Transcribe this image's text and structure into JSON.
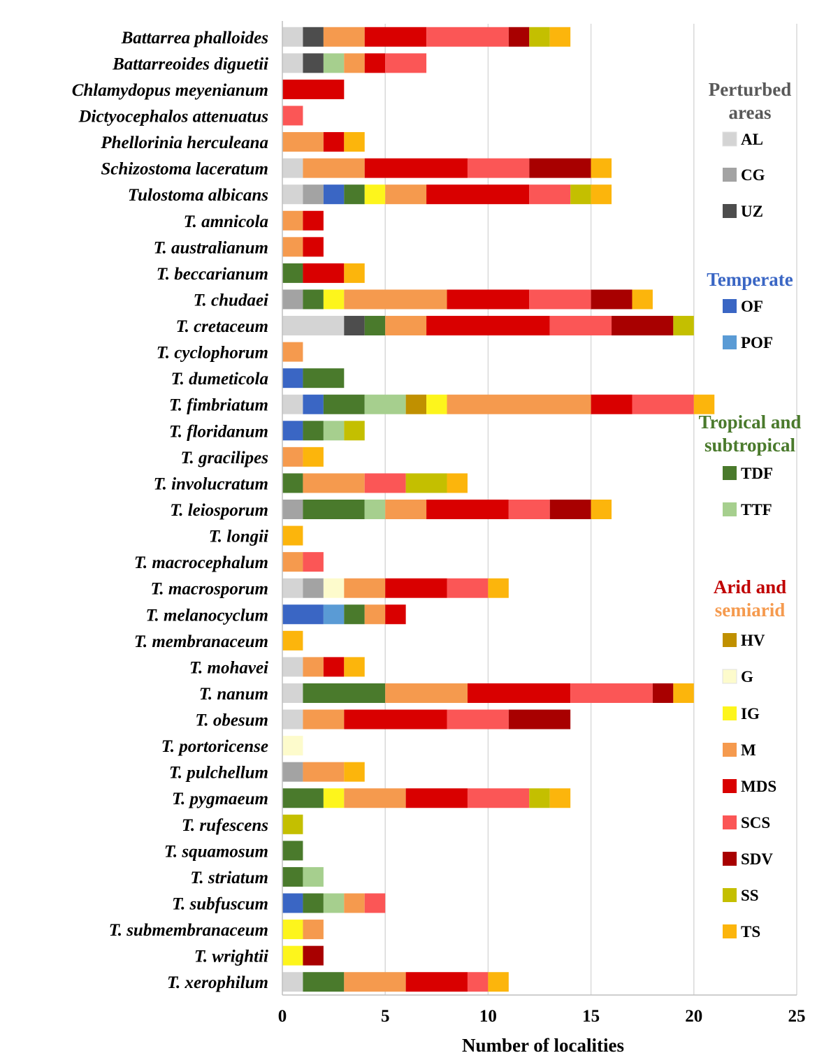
{
  "chart_data": {
    "type": "bar",
    "orientation": "horizontal",
    "stacked": true,
    "title": "",
    "xlabel": "Number of localities",
    "ylabel": "",
    "xlim": [
      0,
      25
    ],
    "xticks": [
      0,
      5,
      10,
      15,
      20,
      25
    ],
    "grid": "vertical",
    "categories": [
      "Battarrea phalloides",
      "Battarreoides diguetii",
      "Chlamydopus meyenianum",
      "Dictyocephalos attenuatus",
      "Phellorinia herculeana",
      "Schizostoma laceratum",
      "Tulostoma albicans",
      "T. amnicola",
      "T. australianum",
      "T. beccarianum",
      "T. chudaei",
      "T. cretaceum",
      "T. cyclophorum",
      "T. dumeticola",
      "T. fimbriatum",
      "T. floridanum",
      "T. gracilipes",
      "T. involucratum",
      "T. leiosporum",
      "T. longii",
      "T. macrocephalum",
      "T. macrosporum",
      "T. melanocyclum",
      "T. membranaceum",
      "T. mohavei",
      "T. nanum",
      "T. obesum",
      "T. portoricense",
      "T. pulchellum",
      "T. pygmaeum",
      "T. rufescens",
      "T. squamosum",
      "T. striatum",
      "T. subfuscum",
      "T. submembranaceum",
      "T. wrightii",
      "T. xerophilum"
    ],
    "series": [
      {
        "name": "AL",
        "color": "#d4d4d4",
        "values": [
          1,
          1,
          0,
          0,
          0,
          1,
          1,
          0,
          0,
          0,
          0,
          3,
          0,
          0,
          1,
          0,
          0,
          0,
          0,
          0,
          0,
          1,
          0,
          0,
          1,
          1,
          1,
          0,
          0,
          0,
          0,
          0,
          0,
          0,
          0,
          0,
          1
        ]
      },
      {
        "name": "CG",
        "color": "#a3a3a3",
        "values": [
          0,
          0,
          0,
          0,
          0,
          0,
          1,
          0,
          0,
          0,
          1,
          0,
          0,
          0,
          0,
          0,
          0,
          0,
          1,
          0,
          0,
          1,
          0,
          0,
          0,
          0,
          0,
          0,
          1,
          0,
          0,
          0,
          0,
          0,
          0,
          0,
          0
        ]
      },
      {
        "name": "UZ",
        "color": "#4d4d4d",
        "values": [
          1,
          1,
          0,
          0,
          0,
          0,
          0,
          0,
          0,
          0,
          0,
          1,
          0,
          0,
          0,
          0,
          0,
          0,
          0,
          0,
          0,
          0,
          0,
          0,
          0,
          0,
          0,
          0,
          0,
          0,
          0,
          0,
          0,
          0,
          0,
          0,
          0
        ]
      },
      {
        "name": "OF",
        "color": "#3a66c4",
        "values": [
          0,
          0,
          0,
          0,
          0,
          0,
          1,
          0,
          0,
          0,
          0,
          0,
          0,
          1,
          1,
          1,
          0,
          0,
          0,
          0,
          0,
          0,
          2,
          0,
          0,
          0,
          0,
          0,
          0,
          0,
          0,
          0,
          0,
          1,
          0,
          0,
          0
        ]
      },
      {
        "name": "POF",
        "color": "#5a9bd5",
        "values": [
          0,
          0,
          0,
          0,
          0,
          0,
          0,
          0,
          0,
          0,
          0,
          0,
          0,
          0,
          0,
          0,
          0,
          0,
          0,
          0,
          0,
          0,
          1,
          0,
          0,
          0,
          0,
          0,
          0,
          0,
          0,
          0,
          0,
          0,
          0,
          0,
          0
        ]
      },
      {
        "name": "TDF",
        "color": "#4a7a2c",
        "values": [
          0,
          0,
          0,
          0,
          0,
          0,
          1,
          0,
          0,
          1,
          1,
          1,
          0,
          2,
          2,
          1,
          0,
          1,
          3,
          0,
          0,
          0,
          1,
          0,
          0,
          4,
          0,
          0,
          0,
          2,
          0,
          1,
          1,
          1,
          0,
          0,
          2
        ]
      },
      {
        "name": "TTF",
        "color": "#a6cf8e",
        "values": [
          0,
          1,
          0,
          0,
          0,
          0,
          0,
          0,
          0,
          0,
          0,
          0,
          0,
          0,
          2,
          1,
          0,
          0,
          1,
          0,
          0,
          0,
          0,
          0,
          0,
          0,
          0,
          0,
          0,
          0,
          0,
          0,
          1,
          1,
          0,
          0,
          0
        ]
      },
      {
        "name": "HV",
        "color": "#c09000",
        "values": [
          0,
          0,
          0,
          0,
          0,
          0,
          0,
          0,
          0,
          0,
          0,
          0,
          0,
          0,
          1,
          0,
          0,
          0,
          0,
          0,
          0,
          0,
          0,
          0,
          0,
          0,
          0,
          0,
          0,
          0,
          0,
          0,
          0,
          0,
          0,
          0,
          0
        ]
      },
      {
        "name": "G",
        "color": "#fdfbcc",
        "values": [
          0,
          0,
          0,
          0,
          0,
          0,
          0,
          0,
          0,
          0,
          0,
          0,
          0,
          0,
          0,
          0,
          0,
          0,
          0,
          0,
          0,
          1,
          0,
          0,
          0,
          0,
          0,
          1,
          0,
          0,
          0,
          0,
          0,
          0,
          0,
          0,
          0
        ]
      },
      {
        "name": "IG",
        "color": "#fdf51c",
        "values": [
          0,
          0,
          0,
          0,
          0,
          0,
          1,
          0,
          0,
          0,
          1,
          0,
          0,
          0,
          1,
          0,
          0,
          0,
          0,
          0,
          0,
          0,
          0,
          0,
          0,
          0,
          0,
          0,
          0,
          1,
          0,
          0,
          0,
          0,
          1,
          1,
          0
        ]
      },
      {
        "name": "M",
        "color": "#f59a4e",
        "values": [
          2,
          1,
          0,
          0,
          2,
          3,
          2,
          1,
          1,
          0,
          5,
          2,
          1,
          0,
          7,
          0,
          1,
          3,
          2,
          0,
          1,
          2,
          1,
          0,
          1,
          4,
          2,
          0,
          2,
          3,
          0,
          0,
          0,
          1,
          1,
          0,
          3
        ]
      },
      {
        "name": "MDS",
        "color": "#d90000",
        "values": [
          3,
          1,
          3,
          0,
          1,
          5,
          5,
          1,
          1,
          2,
          4,
          6,
          0,
          0,
          2,
          0,
          0,
          0,
          4,
          0,
          0,
          3,
          1,
          0,
          1,
          5,
          5,
          0,
          0,
          3,
          0,
          0,
          0,
          0,
          0,
          0,
          3
        ]
      },
      {
        "name": "SCS",
        "color": "#fb5656",
        "values": [
          4,
          2,
          0,
          1,
          0,
          3,
          2,
          0,
          0,
          0,
          3,
          3,
          0,
          0,
          3,
          0,
          0,
          2,
          2,
          0,
          1,
          2,
          0,
          0,
          0,
          4,
          3,
          0,
          0,
          3,
          0,
          0,
          0,
          1,
          0,
          0,
          1
        ]
      },
      {
        "name": "SDV",
        "color": "#a80000",
        "values": [
          1,
          0,
          0,
          0,
          0,
          3,
          0,
          0,
          0,
          0,
          2,
          3,
          0,
          0,
          0,
          0,
          0,
          0,
          2,
          0,
          0,
          0,
          0,
          0,
          0,
          1,
          3,
          0,
          0,
          0,
          0,
          0,
          0,
          0,
          0,
          1,
          0
        ]
      },
      {
        "name": "SS",
        "color": "#c4bf00",
        "values": [
          1,
          0,
          0,
          0,
          0,
          0,
          1,
          0,
          0,
          0,
          0,
          1,
          0,
          0,
          0,
          1,
          0,
          2,
          0,
          0,
          0,
          0,
          0,
          0,
          0,
          0,
          0,
          0,
          0,
          1,
          1,
          0,
          0,
          0,
          0,
          0,
          0
        ]
      },
      {
        "name": "TS",
        "color": "#fcb50c",
        "values": [
          1,
          0,
          0,
          0,
          1,
          1,
          1,
          0,
          0,
          1,
          1,
          0,
          0,
          0,
          1,
          0,
          1,
          1,
          1,
          1,
          0,
          1,
          0,
          1,
          1,
          1,
          0,
          0,
          1,
          1,
          0,
          0,
          0,
          0,
          0,
          0,
          1
        ]
      }
    ],
    "legend": {
      "placement": "right",
      "groups": [
        {
          "title_lines": [
            "Perturbed",
            "areas"
          ],
          "title_colors": [
            "#595959"
          ],
          "items": [
            "AL",
            "CG",
            "UZ"
          ]
        },
        {
          "title_lines": [
            "Temperate"
          ],
          "title_colors": [
            "#3a66c4"
          ],
          "items": [
            "OF",
            "POF"
          ]
        },
        {
          "title_lines": [
            "Tropical and",
            "subtropical"
          ],
          "title_colors": [
            "#4a7a2c"
          ],
          "items": [
            "TDF",
            "TTF"
          ]
        },
        {
          "title_lines": [
            "Arid and",
            "semiarid"
          ],
          "title_colors": [
            "#c00000",
            "#f59a4e"
          ],
          "items": [
            "HV",
            "G",
            "IG",
            "M",
            "MDS",
            "SCS",
            "SDV",
            "SS",
            "TS"
          ]
        }
      ]
    }
  }
}
